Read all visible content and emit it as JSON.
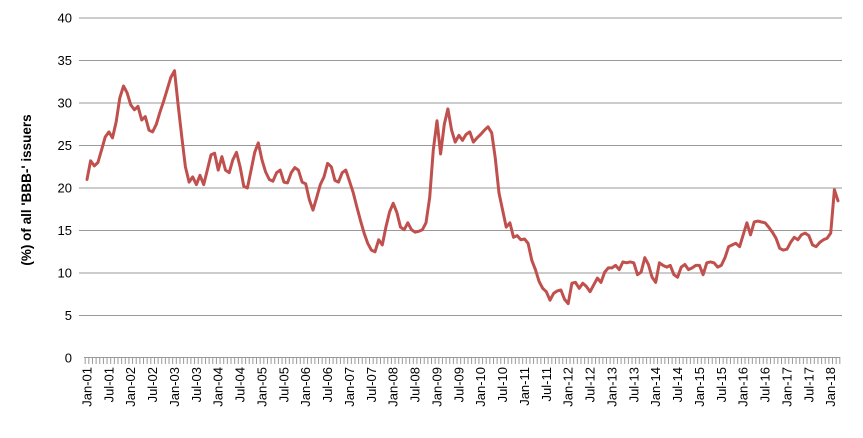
{
  "chart_data": {
    "type": "line",
    "title": "",
    "xlabel": "",
    "ylabel": "(%) of all 'BBB-' issuers",
    "ylim": [
      0,
      40
    ],
    "ytick_labels": [
      "0",
      "5",
      "10",
      "15",
      "20",
      "25",
      "30",
      "35",
      "40"
    ],
    "grid": true,
    "legend_position": "none",
    "x_start": "Jan-2001",
    "x_frequency": "monthly",
    "x_tick_labels": [
      "Jan-01",
      "Jul-01",
      "Jan-02",
      "Jul-02",
      "Jan-03",
      "Jul-03",
      "Jan-04",
      "Jul-04",
      "Jan-05",
      "Jul-05",
      "Jan-06",
      "Jul-06",
      "Jan-07",
      "Jul-07",
      "Jan-08",
      "Jul-08",
      "Jan-09",
      "Jul-09",
      "Jan-10",
      "Jul-10",
      "Jan-11",
      "Jul-11",
      "Jan-12",
      "Jul-12",
      "Jan-13",
      "Jul-13",
      "Jan-14",
      "Jul-14",
      "Jan-15",
      "Jul-15",
      "Jan-16",
      "Jul-16",
      "Jan-17",
      "Jul-17",
      "Jan-18"
    ],
    "months_per_labeled_tick": 6,
    "series": [
      {
        "color": "#C0504D",
        "values": [
          21.0,
          23.2,
          22.6,
          23.0,
          24.5,
          26.0,
          26.6,
          25.9,
          27.8,
          30.6,
          32.0,
          31.2,
          29.8,
          29.2,
          29.6,
          28.0,
          28.4,
          26.8,
          26.6,
          27.5,
          28.9,
          30.2,
          31.6,
          33.0,
          33.8,
          29.8,
          26.0,
          22.5,
          20.7,
          21.3,
          20.4,
          21.5,
          20.4,
          22.1,
          23.9,
          24.1,
          22.1,
          23.7,
          22.1,
          21.8,
          23.3,
          24.2,
          22.5,
          20.2,
          20.0,
          22.1,
          24.2,
          25.3,
          23.3,
          21.9,
          21.0,
          20.8,
          21.8,
          22.1,
          20.7,
          20.6,
          21.8,
          22.4,
          22.1,
          20.7,
          20.5,
          18.6,
          17.4,
          18.9,
          20.4,
          21.3,
          22.9,
          22.5,
          20.9,
          20.7,
          21.8,
          22.1,
          20.8,
          19.5,
          17.8,
          16.2,
          14.7,
          13.5,
          12.7,
          12.5,
          13.9,
          13.3,
          15.4,
          17.2,
          18.2,
          17.1,
          15.4,
          15.1,
          15.9,
          15.1,
          14.8,
          14.9,
          15.1,
          15.9,
          18.9,
          24.5,
          27.9,
          24.0,
          27.5,
          29.3,
          26.8,
          25.4,
          26.2,
          25.6,
          26.3,
          26.6,
          25.4,
          25.9,
          26.3,
          26.8,
          27.2,
          26.5,
          23.5,
          19.4,
          17.4,
          15.4,
          15.9,
          14.2,
          14.4,
          13.9,
          14.0,
          13.5,
          11.5,
          10.4,
          9.0,
          8.2,
          7.8,
          6.8,
          7.6,
          7.9,
          8.0,
          6.9,
          6.4,
          8.8,
          8.9,
          8.2,
          8.8,
          8.4,
          7.8,
          8.6,
          9.4,
          8.9,
          10.1,
          10.6,
          10.6,
          10.9,
          10.4,
          11.3,
          11.2,
          11.3,
          11.2,
          9.8,
          10.1,
          11.8,
          11.0,
          9.5,
          8.9,
          11.2,
          10.9,
          10.7,
          10.9,
          9.8,
          9.5,
          10.7,
          11.0,
          10.4,
          10.6,
          10.9,
          10.9,
          9.8,
          11.2,
          11.3,
          11.2,
          10.7,
          10.9,
          11.8,
          13.1,
          13.3,
          13.5,
          13.1,
          14.5,
          15.9,
          14.5,
          16.0,
          16.1,
          16.0,
          15.9,
          15.4,
          14.8,
          14.1,
          12.9,
          12.7,
          12.8,
          13.6,
          14.2,
          13.9,
          14.5,
          14.7,
          14.4,
          13.3,
          13.1,
          13.6,
          13.9,
          14.1,
          14.7,
          19.8,
          18.5
        ]
      }
    ]
  },
  "colors": {
    "line": "#C0504D",
    "grid": "#999999",
    "tick": "#999999",
    "text": "#000000",
    "background": "#FFFFFF"
  }
}
